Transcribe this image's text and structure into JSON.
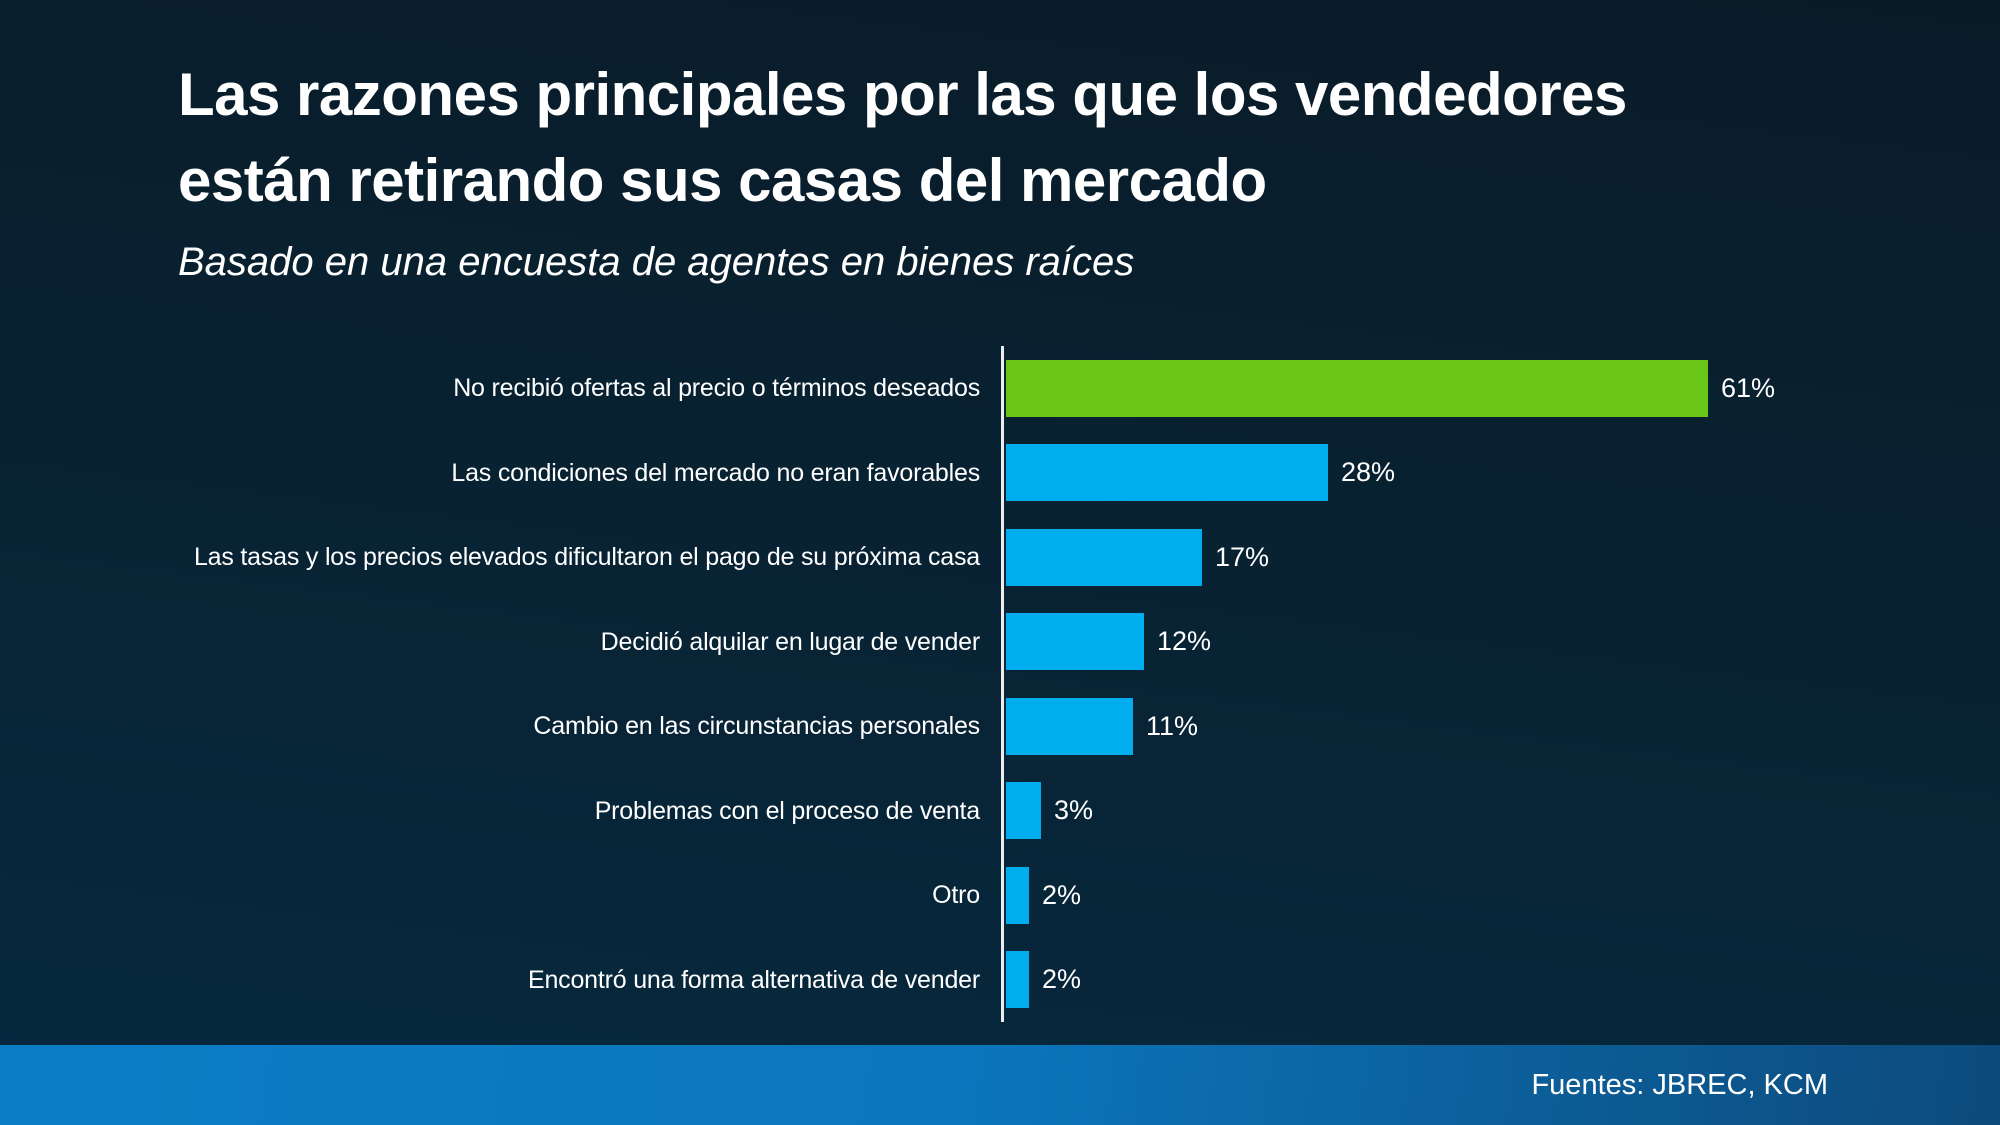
{
  "header": {
    "title_lines": [
      "Las razones principales por las que los vendedores",
      "están retirando sus casas del mercado"
    ],
    "subtitle": "Basado en una encuesta de agentes en bienes raíces"
  },
  "chart_data": {
    "type": "bar",
    "orientation": "horizontal",
    "title": "Las razones principales por las que los vendedores están retirando sus casas del mercado",
    "subtitle": "Basado en una encuesta de agentes en bienes raíces",
    "categories": [
      "No recibió ofertas al precio o términos deseados",
      "Las condiciones del mercado no eran favorables",
      "Las tasas y los precios elevados dificultaron el pago de su próxima casa",
      "Decidió alquilar en lugar de vender",
      "Cambio en las circunstancias personales",
      "Problemas con el proceso de venta",
      "Otro",
      "Encontró una forma alternativa de vender"
    ],
    "values": [
      61,
      28,
      17,
      12,
      11,
      3,
      2,
      2
    ],
    "value_labels": [
      "61%",
      "28%",
      "17%",
      "12%",
      "11%",
      "3%",
      "2%",
      "2%"
    ],
    "xlabel": "",
    "ylabel": "",
    "xlim": [
      0,
      86
    ],
    "grid": false,
    "legend": false,
    "highlight_index": 0,
    "colors": {
      "highlight": "#69c516",
      "default": "#00adee",
      "axis": "#e9edef",
      "background_top": "#0a1b28",
      "background_bottom": "#06293f",
      "text": "#ffffff"
    }
  },
  "footer": {
    "sources": "Fuentes: JBREC, KCM",
    "gradient_left": "#0a7dc6",
    "gradient_right": "#0d4a7b"
  }
}
